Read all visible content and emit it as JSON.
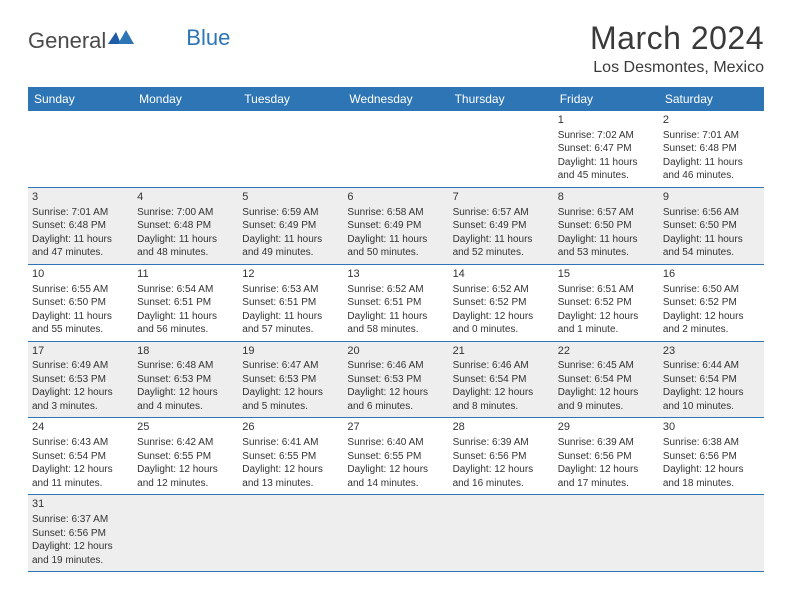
{
  "brand": {
    "general": "General",
    "blue": "Blue"
  },
  "title": "March 2024",
  "location": "Los Desmontes, Mexico",
  "colors": {
    "header_bg": "#2e75b6",
    "header_text": "#ffffff",
    "row_alt_bg": "#eeeeee",
    "border": "#2e75b6",
    "text": "#333333",
    "title_text": "#3a3a3a"
  },
  "day_headers": [
    "Sunday",
    "Monday",
    "Tuesday",
    "Wednesday",
    "Thursday",
    "Friday",
    "Saturday"
  ],
  "weeks": [
    [
      null,
      null,
      null,
      null,
      null,
      {
        "d": "1",
        "sr": "7:02 AM",
        "ss": "6:47 PM",
        "dl": "11 hours and 45 minutes."
      },
      {
        "d": "2",
        "sr": "7:01 AM",
        "ss": "6:48 PM",
        "dl": "11 hours and 46 minutes."
      }
    ],
    [
      {
        "d": "3",
        "sr": "7:01 AM",
        "ss": "6:48 PM",
        "dl": "11 hours and 47 minutes."
      },
      {
        "d": "4",
        "sr": "7:00 AM",
        "ss": "6:48 PM",
        "dl": "11 hours and 48 minutes."
      },
      {
        "d": "5",
        "sr": "6:59 AM",
        "ss": "6:49 PM",
        "dl": "11 hours and 49 minutes."
      },
      {
        "d": "6",
        "sr": "6:58 AM",
        "ss": "6:49 PM",
        "dl": "11 hours and 50 minutes."
      },
      {
        "d": "7",
        "sr": "6:57 AM",
        "ss": "6:49 PM",
        "dl": "11 hours and 52 minutes."
      },
      {
        "d": "8",
        "sr": "6:57 AM",
        "ss": "6:50 PM",
        "dl": "11 hours and 53 minutes."
      },
      {
        "d": "9",
        "sr": "6:56 AM",
        "ss": "6:50 PM",
        "dl": "11 hours and 54 minutes."
      }
    ],
    [
      {
        "d": "10",
        "sr": "6:55 AM",
        "ss": "6:50 PM",
        "dl": "11 hours and 55 minutes."
      },
      {
        "d": "11",
        "sr": "6:54 AM",
        "ss": "6:51 PM",
        "dl": "11 hours and 56 minutes."
      },
      {
        "d": "12",
        "sr": "6:53 AM",
        "ss": "6:51 PM",
        "dl": "11 hours and 57 minutes."
      },
      {
        "d": "13",
        "sr": "6:52 AM",
        "ss": "6:51 PM",
        "dl": "11 hours and 58 minutes."
      },
      {
        "d": "14",
        "sr": "6:52 AM",
        "ss": "6:52 PM",
        "dl": "12 hours and 0 minutes."
      },
      {
        "d": "15",
        "sr": "6:51 AM",
        "ss": "6:52 PM",
        "dl": "12 hours and 1 minute."
      },
      {
        "d": "16",
        "sr": "6:50 AM",
        "ss": "6:52 PM",
        "dl": "12 hours and 2 minutes."
      }
    ],
    [
      {
        "d": "17",
        "sr": "6:49 AM",
        "ss": "6:53 PM",
        "dl": "12 hours and 3 minutes."
      },
      {
        "d": "18",
        "sr": "6:48 AM",
        "ss": "6:53 PM",
        "dl": "12 hours and 4 minutes."
      },
      {
        "d": "19",
        "sr": "6:47 AM",
        "ss": "6:53 PM",
        "dl": "12 hours and 5 minutes."
      },
      {
        "d": "20",
        "sr": "6:46 AM",
        "ss": "6:53 PM",
        "dl": "12 hours and 6 minutes."
      },
      {
        "d": "21",
        "sr": "6:46 AM",
        "ss": "6:54 PM",
        "dl": "12 hours and 8 minutes."
      },
      {
        "d": "22",
        "sr": "6:45 AM",
        "ss": "6:54 PM",
        "dl": "12 hours and 9 minutes."
      },
      {
        "d": "23",
        "sr": "6:44 AM",
        "ss": "6:54 PM",
        "dl": "12 hours and 10 minutes."
      }
    ],
    [
      {
        "d": "24",
        "sr": "6:43 AM",
        "ss": "6:54 PM",
        "dl": "12 hours and 11 minutes."
      },
      {
        "d": "25",
        "sr": "6:42 AM",
        "ss": "6:55 PM",
        "dl": "12 hours and 12 minutes."
      },
      {
        "d": "26",
        "sr": "6:41 AM",
        "ss": "6:55 PM",
        "dl": "12 hours and 13 minutes."
      },
      {
        "d": "27",
        "sr": "6:40 AM",
        "ss": "6:55 PM",
        "dl": "12 hours and 14 minutes."
      },
      {
        "d": "28",
        "sr": "6:39 AM",
        "ss": "6:56 PM",
        "dl": "12 hours and 16 minutes."
      },
      {
        "d": "29",
        "sr": "6:39 AM",
        "ss": "6:56 PM",
        "dl": "12 hours and 17 minutes."
      },
      {
        "d": "30",
        "sr": "6:38 AM",
        "ss": "6:56 PM",
        "dl": "12 hours and 18 minutes."
      }
    ],
    [
      {
        "d": "31",
        "sr": "6:37 AM",
        "ss": "6:56 PM",
        "dl": "12 hours and 19 minutes."
      },
      null,
      null,
      null,
      null,
      null,
      null
    ]
  ],
  "labels": {
    "sunrise": "Sunrise: ",
    "sunset": "Sunset: ",
    "daylight": "Daylight: "
  }
}
